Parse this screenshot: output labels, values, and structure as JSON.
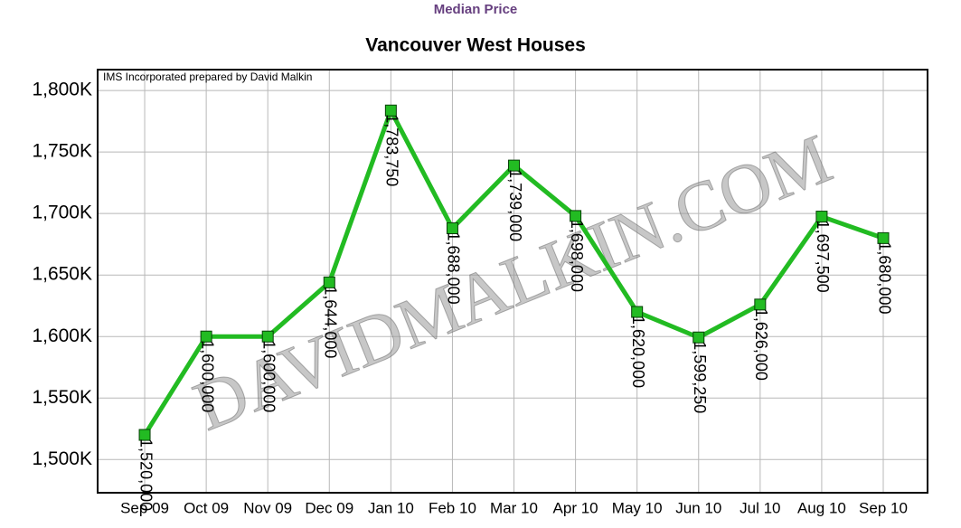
{
  "chart_data": {
    "type": "line",
    "header": "Median Price",
    "title": "Vancouver West Houses",
    "note": "IMS Incorporated prepared by David Malkin",
    "watermark": "DAVIDMALKIN.COM",
    "categories": [
      "Sep 09",
      "Oct 09",
      "Nov 09",
      "Dec 09",
      "Jan 10",
      "Feb 10",
      "Mar 10",
      "Apr 10",
      "May 10",
      "Jun 10",
      "Jul 10",
      "Aug 10",
      "Sep 10"
    ],
    "series": [
      {
        "color": "#22bb22",
        "values": [
          1520000,
          1600000,
          1600000,
          1644000,
          1783750,
          1688000,
          1739000,
          1698000,
          1620000,
          1599250,
          1626000,
          1697500,
          1680000
        ],
        "value_labels": [
          "1,520,000",
          "1,600,000",
          "1,600,000",
          "1,644,000",
          "1,783,750",
          "1,688,000",
          "1,739,000",
          "1,698,000",
          "1,620,000",
          "1,599,250",
          "1,626,000",
          "1,697,500",
          "1,680,000"
        ]
      }
    ],
    "ylim": [
      1473000,
      1817000
    ],
    "yticks": [
      {
        "value": 1500000,
        "label": "1,500K"
      },
      {
        "value": 1550000,
        "label": "1,550K"
      },
      {
        "value": 1600000,
        "label": "1,600K"
      },
      {
        "value": 1650000,
        "label": "1,650K"
      },
      {
        "value": 1700000,
        "label": "1,700K"
      },
      {
        "value": 1750000,
        "label": "1,750K"
      },
      {
        "value": 1800000,
        "label": "1,800K"
      }
    ],
    "grid": true
  }
}
